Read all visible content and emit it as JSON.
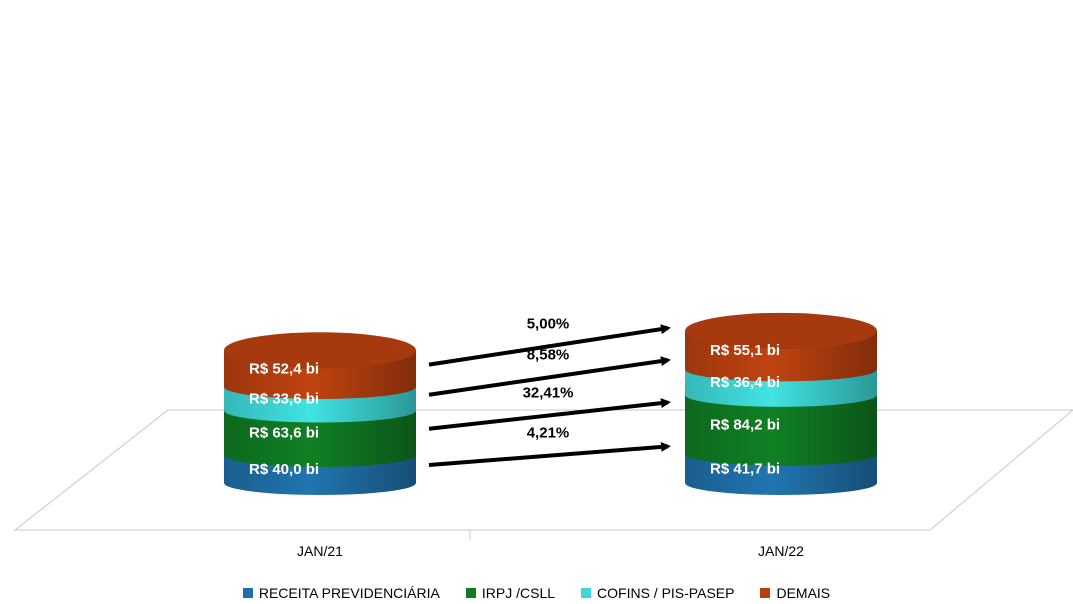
{
  "chart_data": {
    "type": "bar",
    "stacked": true,
    "style": "3d-cylinder",
    "categories": [
      "JAN/21",
      "JAN/22"
    ],
    "series": [
      {
        "name": "RECEITA PREVIDENCIÁRIA",
        "values": [
          40.0,
          41.7
        ],
        "labels": [
          "R$ 40,0  bi",
          "R$ 41,7  bi"
        ],
        "color": "#1f6fa8"
      },
      {
        "name": "IRPJ /CSLL",
        "values": [
          63.6,
          84.2
        ],
        "labels": [
          "R$ 63,6  bi",
          "R$ 84,2  bi"
        ],
        "color": "#0f7a22"
      },
      {
        "name": "COFINS / PIS-PASEP",
        "values": [
          33.6,
          36.4
        ],
        "labels": [
          "R$ 33,6  bi",
          "R$ 36,4  bi"
        ],
        "color": "#3ed8d8"
      },
      {
        "name": "DEMAIS",
        "values": [
          52.4,
          55.1
        ],
        "labels": [
          "R$ 52,4  bi",
          "R$ 55,1  bi"
        ],
        "color": "#b8400f"
      }
    ],
    "growth_annotations": [
      "4,21%",
      "32,41%",
      "8,58%",
      "5,00%"
    ],
    "legend_position": "bottom",
    "grid": false
  }
}
